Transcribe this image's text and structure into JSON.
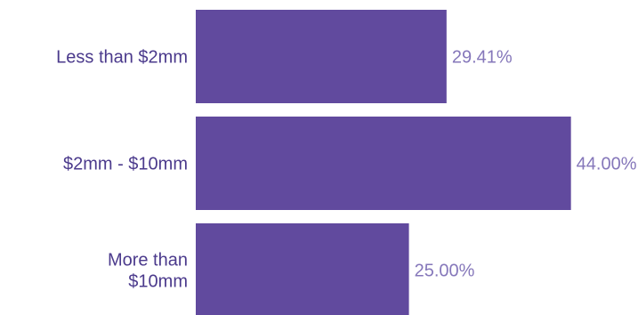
{
  "chart_data": {
    "type": "bar",
    "orientation": "horizontal",
    "categories": [
      [
        "Less than $2mm"
      ],
      [
        "$2mm - $10mm"
      ],
      [
        "More than",
        "$10mm"
      ]
    ],
    "values": [
      29.41,
      44.0,
      25.0
    ],
    "value_labels": [
      "29.41%",
      "44.00%",
      "25.00%"
    ],
    "xlim": [
      0,
      60
    ],
    "grid": false,
    "legend": "none",
    "colors": {
      "bar": "#614a9e",
      "category_label": "#4b3a8c",
      "value_label": "#8577ba"
    }
  }
}
